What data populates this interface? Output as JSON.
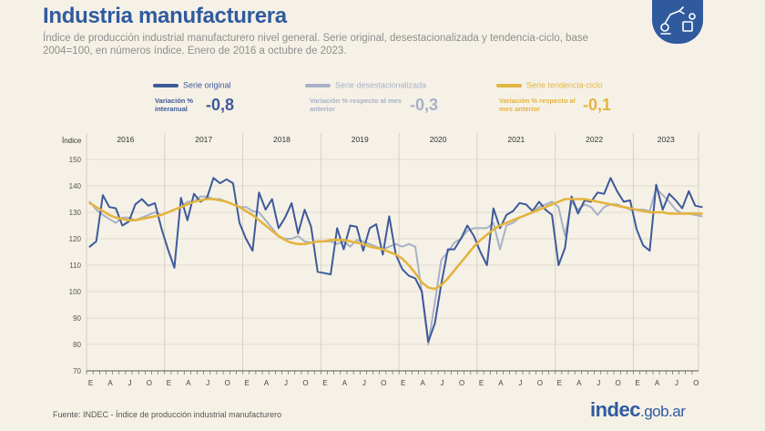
{
  "header": {
    "title": "Industria manufacturera",
    "subtitle": "Índice de producción industrial manufacturero nivel general. Serie original, desestacionalizada y tendencia-ciclo, base 2004=100, en números índice. Enero de 2016 a octubre de 2023."
  },
  "legend": {
    "original": {
      "name": "Serie original",
      "stat_label": "Variación % interanual",
      "stat_value": "-0,8",
      "color": "#3d5a9a"
    },
    "desest": {
      "name": "Serie desestacionalizada",
      "stat_label": "Variación % respecto al mes anterior",
      "stat_value": "-0,3",
      "color": "#a7b1c6"
    },
    "tendencia": {
      "name": "Serie tendencia-ciclo",
      "stat_label": "Variación % respecto al mes anterior",
      "stat_value": "-0,1",
      "color": "#e3b43f"
    }
  },
  "footer": {
    "source": "Fuente: INDEC - Índice de producción industrial manufacturero",
    "logo_main": "indec",
    "logo_suffix": ".gob.ar"
  },
  "icons": {
    "badge": "factory-robot-icon"
  },
  "chart_data": {
    "type": "line",
    "ylabel": "Índice",
    "ylim": [
      70,
      150
    ],
    "yticks": [
      70,
      80,
      90,
      100,
      110,
      120,
      130,
      140,
      150
    ],
    "years": [
      "2016",
      "2017",
      "2018",
      "2019",
      "2020",
      "2021",
      "2022",
      "2023"
    ],
    "month_ticks": [
      "E",
      "A",
      "J",
      "O"
    ],
    "x_start": "2016-01",
    "x_end": "2023-10",
    "grid": true,
    "series": [
      {
        "name": "Serie original",
        "color": "#3d5a9a",
        "values": [
          117,
          119,
          136.5,
          132,
          131.5,
          125,
          126.5,
          133,
          135,
          132.5,
          133.5,
          124,
          116,
          109,
          135.5,
          127,
          137,
          134,
          135.5,
          143,
          141,
          142.5,
          141,
          126,
          120,
          115.5,
          137.5,
          131,
          135,
          124,
          128,
          133.5,
          122,
          131,
          124.5,
          107.5,
          107,
          106.5,
          124,
          116,
          125,
          124.5,
          115.5,
          124,
          125.5,
          114,
          128.5,
          114,
          108.5,
          106,
          105,
          100,
          81,
          88,
          103,
          116,
          116,
          120,
          125,
          121,
          115,
          110,
          131.5,
          124,
          129,
          130.5,
          133.5,
          133,
          130.5,
          134,
          131,
          129,
          110,
          116.5,
          136,
          129.5,
          134.5,
          134,
          137.5,
          137,
          143,
          138,
          134,
          134.5,
          123.5,
          117.5,
          115.5,
          140.5,
          131,
          137,
          134.5,
          131.5,
          138,
          132.5,
          132
        ]
      },
      {
        "name": "Serie desestacionalizada",
        "color": "#a7b1c6",
        "values": [
          134,
          131,
          129,
          127.5,
          126,
          128,
          128,
          127,
          128,
          129,
          130,
          129,
          130,
          131,
          132,
          134,
          134,
          136,
          136,
          135,
          135,
          134,
          133,
          132,
          132,
          130.5,
          130,
          127,
          124,
          121,
          120,
          120,
          121,
          119,
          118.5,
          119,
          119,
          119,
          118,
          119,
          117,
          119.5,
          119,
          118,
          117,
          116,
          117,
          118,
          117,
          118,
          117,
          100,
          80,
          96,
          112,
          115,
          118.5,
          120,
          123,
          124,
          124,
          124,
          126,
          116,
          125,
          126,
          128,
          129,
          130,
          132,
          133,
          134,
          132,
          121,
          134,
          131,
          133,
          132,
          129,
          132,
          133,
          133,
          132,
          131,
          131,
          131,
          130.5,
          139,
          136.5,
          134,
          131,
          129.5,
          129.5,
          129,
          128.5
        ]
      },
      {
        "name": "Serie tendencia-ciclo",
        "color": "#e3b43f",
        "values": [
          133.5,
          132,
          130.5,
          129,
          128,
          127.5,
          127,
          127,
          127.5,
          128,
          128.5,
          129,
          130,
          131,
          132,
          133,
          134,
          134.5,
          135,
          135,
          134.5,
          134,
          133,
          132,
          130.5,
          129,
          127,
          125,
          123,
          121,
          119.5,
          118.5,
          118,
          118,
          118.5,
          119,
          119,
          119.5,
          119.5,
          119.5,
          119,
          118.5,
          118,
          117,
          116.5,
          116,
          115,
          114,
          112.5,
          110,
          107,
          103.5,
          101.5,
          101,
          102.5,
          105,
          108,
          111,
          114,
          117,
          119.5,
          121.5,
          123.5,
          125,
          126,
          127,
          128,
          129,
          130,
          131,
          132,
          133,
          134,
          135,
          135,
          135,
          135,
          134.5,
          134,
          133.5,
          133,
          132.5,
          132,
          131.5,
          131,
          130.5,
          130,
          130,
          130,
          129.5,
          129.5,
          129.5,
          129.5,
          129.5,
          129.5
        ]
      }
    ]
  }
}
